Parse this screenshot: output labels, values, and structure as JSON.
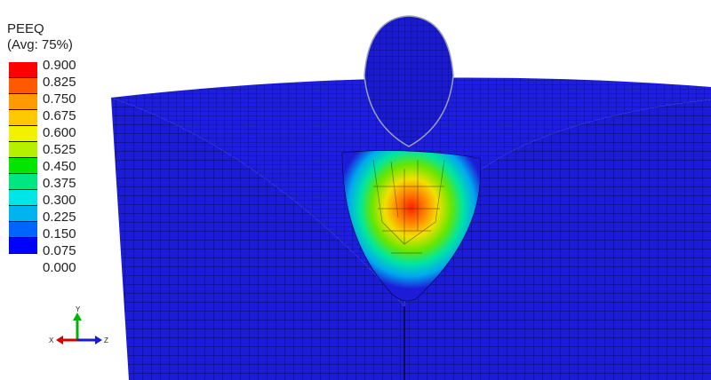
{
  "legend": {
    "title": "PEEQ",
    "subtitle": "(Avg: 75%)",
    "levels": [
      "0.900",
      "0.825",
      "0.750",
      "0.675",
      "0.600",
      "0.525",
      "0.450",
      "0.375",
      "0.300",
      "0.225",
      "0.150",
      "0.075",
      "0.000"
    ],
    "colors": [
      "#ff0000",
      "#ff5a00",
      "#ff9b00",
      "#ffc800",
      "#f2f200",
      "#b4f000",
      "#00e600",
      "#00e682",
      "#00e6e6",
      "#00b4f0",
      "#0064ff",
      "#0000ff"
    ]
  },
  "triad": {
    "x_label": "X",
    "y_label": "Y",
    "z_label": "Z"
  },
  "colors": {
    "mesh_blue": "#1c1cd8",
    "mesh_line": "#000030",
    "indenter_blue": "#1a1ad0"
  }
}
